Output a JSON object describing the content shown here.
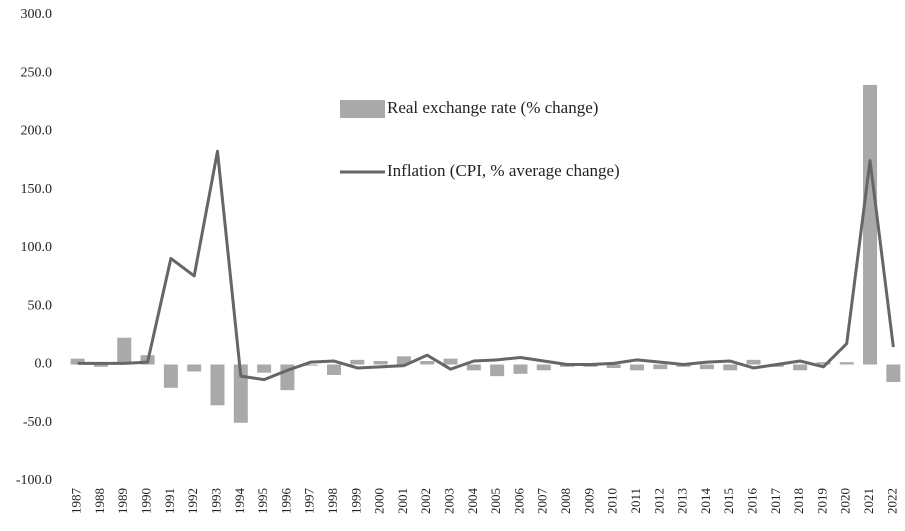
{
  "chart_data": {
    "type": "bar_line",
    "categories": [
      "1987",
      "1988",
      "1989",
      "1990",
      "1991",
      "1992",
      "1993",
      "1994",
      "1995",
      "1996",
      "1997",
      "1998",
      "1999",
      "2000",
      "2001",
      "2002",
      "2003",
      "2004",
      "2005",
      "2006",
      "2007",
      "2008",
      "2009",
      "2010",
      "2011",
      "2012",
      "2013",
      "2014",
      "2015",
      "2016",
      "2017",
      "2018",
      "2019",
      "2020",
      "2021",
      "2022"
    ],
    "series": [
      {
        "name": "Real exchange rate (% change)",
        "type": "bar",
        "color": "#a9a9a9",
        "values": [
          5,
          -2,
          23,
          8,
          -20,
          -6,
          -35,
          -50,
          -7,
          -22,
          -1,
          -9,
          4,
          3,
          7,
          3,
          5,
          -5,
          -10,
          -8,
          -5,
          -2,
          -2,
          -3,
          -5,
          -4,
          -2,
          -4,
          -5,
          4,
          -2,
          -5,
          2,
          2,
          240,
          -15
        ]
      },
      {
        "name": "Inflation (CPI, % average change)",
        "type": "line",
        "color": "#666666",
        "values": [
          1,
          1,
          1,
          2,
          91,
          76,
          183,
          -10,
          -13,
          -5,
          2,
          3,
          -3,
          -2,
          -1,
          8,
          -4,
          3,
          4,
          6,
          3,
          0,
          0,
          1,
          4,
          2,
          0,
          2,
          3,
          -3,
          0,
          3,
          -2,
          18,
          175,
          15
        ]
      }
    ],
    "ylim": [
      -100,
      300
    ],
    "yticks": [
      {
        "value": -100,
        "label": "-100.0"
      },
      {
        "value": -50,
        "label": "-50.0"
      },
      {
        "value": 0,
        "label": "0.0"
      },
      {
        "value": 50,
        "label": "50.0"
      },
      {
        "value": 100,
        "label": "100.0"
      },
      {
        "value": 150,
        "label": "150.0"
      },
      {
        "value": 200,
        "label": "200.0"
      },
      {
        "value": 250,
        "label": "250.0"
      },
      {
        "value": 300,
        "label": "300.0"
      }
    ],
    "grid": false
  }
}
